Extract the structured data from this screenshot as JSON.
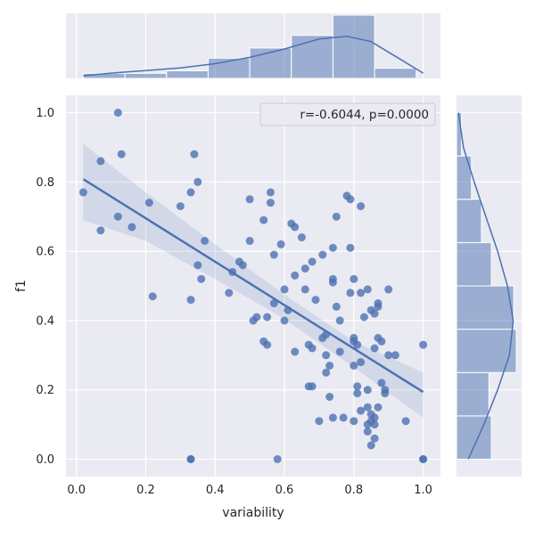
{
  "chart_data": {
    "type": "scatter",
    "xlabel": "variability",
    "ylabel": "f1",
    "xlim": [
      -0.03,
      1.05
    ],
    "ylim": [
      -0.05,
      1.05
    ],
    "x_ticks": [
      "0.0",
      "0.2",
      "0.4",
      "0.6",
      "0.8",
      "1.0"
    ],
    "y_ticks": [
      "0.0",
      "0.2",
      "0.4",
      "0.6",
      "0.8",
      "1.0"
    ],
    "grid": true,
    "legend": {
      "text": "r=-0.6044, p=0.0000",
      "placement": "top-right"
    },
    "colors": {
      "points": "#4c72b0",
      "background": "#eaeaf2",
      "grid": "#ffffff",
      "band": "#4c72b0"
    },
    "regression": {
      "x_start": 0.02,
      "y_start": 0.808,
      "x_end": 1.0,
      "y_end": 0.194
    },
    "confidence_band": {
      "x": [
        0.02,
        0.2,
        0.4,
        0.6,
        0.8,
        1.0
      ],
      "lower": [
        0.69,
        0.63,
        0.52,
        0.405,
        0.265,
        0.12
      ],
      "upper": [
        0.91,
        0.77,
        0.62,
        0.475,
        0.34,
        0.25
      ]
    },
    "points": [
      [
        0.02,
        0.77
      ],
      [
        0.07,
        0.86
      ],
      [
        0.07,
        0.66
      ],
      [
        0.12,
        1.0
      ],
      [
        0.13,
        0.88
      ],
      [
        0.12,
        0.7
      ],
      [
        0.16,
        0.67
      ],
      [
        0.21,
        0.74
      ],
      [
        0.22,
        0.47
      ],
      [
        0.3,
        0.73
      ],
      [
        0.33,
        0.77
      ],
      [
        0.34,
        0.88
      ],
      [
        0.35,
        0.8
      ],
      [
        0.33,
        0.46
      ],
      [
        0.35,
        0.56
      ],
      [
        0.36,
        0.52
      ],
      [
        0.37,
        0.63
      ],
      [
        0.33,
        0.0
      ],
      [
        0.33,
        0.0
      ],
      [
        0.44,
        0.48
      ],
      [
        0.45,
        0.54
      ],
      [
        0.47,
        0.57
      ],
      [
        0.48,
        0.56
      ],
      [
        0.5,
        0.75
      ],
      [
        0.5,
        0.63
      ],
      [
        0.51,
        0.4
      ],
      [
        0.52,
        0.41
      ],
      [
        0.54,
        0.69
      ],
      [
        0.54,
        0.34
      ],
      [
        0.55,
        0.41
      ],
      [
        0.55,
        0.33
      ],
      [
        0.56,
        0.77
      ],
      [
        0.56,
        0.74
      ],
      [
        0.57,
        0.59
      ],
      [
        0.57,
        0.45
      ],
      [
        0.58,
        0.0
      ],
      [
        0.59,
        0.62
      ],
      [
        0.6,
        0.4
      ],
      [
        0.6,
        0.49
      ],
      [
        0.61,
        0.43
      ],
      [
        0.62,
        0.68
      ],
      [
        0.63,
        0.67
      ],
      [
        0.63,
        0.53
      ],
      [
        0.63,
        0.31
      ],
      [
        0.65,
        0.64
      ],
      [
        0.66,
        0.49
      ],
      [
        0.66,
        0.55
      ],
      [
        0.67,
        0.33
      ],
      [
        0.67,
        0.21
      ],
      [
        0.68,
        0.57
      ],
      [
        0.68,
        0.32
      ],
      [
        0.68,
        0.21
      ],
      [
        0.69,
        0.46
      ],
      [
        0.7,
        0.11
      ],
      [
        0.71,
        0.35
      ],
      [
        0.71,
        0.59
      ],
      [
        0.72,
        0.36
      ],
      [
        0.72,
        0.3
      ],
      [
        0.72,
        0.25
      ],
      [
        0.73,
        0.27
      ],
      [
        0.73,
        0.18
      ],
      [
        0.74,
        0.52
      ],
      [
        0.74,
        0.61
      ],
      [
        0.74,
        0.51
      ],
      [
        0.74,
        0.12
      ],
      [
        0.75,
        0.7
      ],
      [
        0.75,
        0.44
      ],
      [
        0.76,
        0.31
      ],
      [
        0.76,
        0.4
      ],
      [
        0.77,
        0.12
      ],
      [
        0.78,
        0.76
      ],
      [
        0.79,
        0.75
      ],
      [
        0.79,
        0.61
      ],
      [
        0.79,
        0.48
      ],
      [
        0.8,
        0.52
      ],
      [
        0.8,
        0.35
      ],
      [
        0.8,
        0.34
      ],
      [
        0.8,
        0.27
      ],
      [
        0.8,
        0.11
      ],
      [
        0.81,
        0.33
      ],
      [
        0.81,
        0.21
      ],
      [
        0.81,
        0.19
      ],
      [
        0.82,
        0.48
      ],
      [
        0.82,
        0.73
      ],
      [
        0.82,
        0.28
      ],
      [
        0.82,
        0.14
      ],
      [
        0.83,
        0.41
      ],
      [
        0.84,
        0.49
      ],
      [
        0.84,
        0.2
      ],
      [
        0.84,
        0.15
      ],
      [
        0.84,
        0.1
      ],
      [
        0.84,
        0.08
      ],
      [
        0.85,
        0.43
      ],
      [
        0.85,
        0.13
      ],
      [
        0.85,
        0.11
      ],
      [
        0.85,
        0.04
      ],
      [
        0.86,
        0.42
      ],
      [
        0.86,
        0.12
      ],
      [
        0.86,
        0.1
      ],
      [
        0.86,
        0.06
      ],
      [
        0.86,
        0.32
      ],
      [
        0.87,
        0.44
      ],
      [
        0.87,
        0.45
      ],
      [
        0.87,
        0.35
      ],
      [
        0.87,
        0.15
      ],
      [
        0.88,
        0.22
      ],
      [
        0.88,
        0.34
      ],
      [
        0.89,
        0.19
      ],
      [
        0.89,
        0.2
      ],
      [
        0.9,
        0.49
      ],
      [
        0.9,
        0.3
      ],
      [
        0.92,
        0.3
      ],
      [
        0.95,
        0.11
      ],
      [
        1.0,
        0.33
      ],
      [
        1.0,
        0.0
      ],
      [
        1.0,
        0.0
      ]
    ],
    "marginal_x": {
      "bins": [
        0.02,
        0.14,
        0.26,
        0.38,
        0.5,
        0.62,
        0.74,
        0.86,
        0.98
      ],
      "counts": [
        2,
        2,
        3,
        8,
        12,
        17,
        25,
        4
      ],
      "kde_x": [
        0.02,
        0.1,
        0.2,
        0.3,
        0.4,
        0.5,
        0.6,
        0.7,
        0.78,
        0.85,
        0.92,
        1.0
      ],
      "kde_y": [
        0.05,
        0.1,
        0.15,
        0.2,
        0.28,
        0.4,
        0.56,
        0.75,
        0.8,
        0.7,
        0.42,
        0.1
      ]
    },
    "marginal_y": {
      "bins": [
        0.0,
        0.125,
        0.25,
        0.375,
        0.5,
        0.625,
        0.75,
        0.875,
        1.0
      ],
      "counts": [
        14,
        13,
        24,
        23,
        14,
        10,
        6,
        2
      ],
      "kde_y": [
        0.0,
        0.1,
        0.2,
        0.3,
        0.4,
        0.5,
        0.6,
        0.7,
        0.8,
        0.9,
        1.0
      ],
      "kde_x": [
        0.12,
        0.28,
        0.42,
        0.54,
        0.58,
        0.52,
        0.42,
        0.3,
        0.18,
        0.07,
        0.02
      ]
    }
  }
}
